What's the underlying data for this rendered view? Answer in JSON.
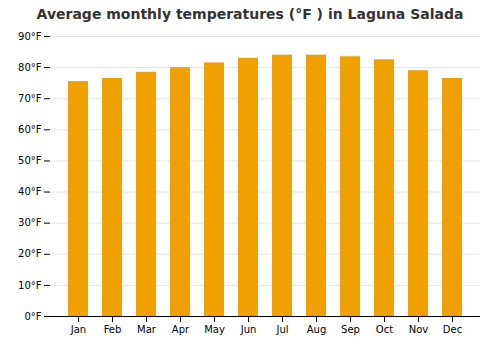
{
  "chart_data": {
    "type": "bar",
    "title": "Average monthly temperatures (°F ) in Laguna Salada",
    "categories": [
      "Jan",
      "Feb",
      "Mar",
      "Apr",
      "May",
      "Jun",
      "Jul",
      "Aug",
      "Sep",
      "Oct",
      "Nov",
      "Dec"
    ],
    "values": [
      75.5,
      76.5,
      78.5,
      80.0,
      81.5,
      83.0,
      84.0,
      84.0,
      83.5,
      82.5,
      79.0,
      76.5
    ],
    "color": "#F0A000",
    "ylim": [
      0,
      90
    ],
    "yticks": [
      {
        "value": 0,
        "label": "0°F"
      },
      {
        "value": 10,
        "label": "10°F"
      },
      {
        "value": 20,
        "label": "20°F"
      },
      {
        "value": 30,
        "label": "30°F"
      },
      {
        "value": 40,
        "label": "40°F"
      },
      {
        "value": 50,
        "label": "50°F"
      },
      {
        "value": 60,
        "label": "60°F"
      },
      {
        "value": 70,
        "label": "70°F"
      },
      {
        "value": 80,
        "label": "80°F"
      },
      {
        "value": 90,
        "label": "90°F"
      }
    ],
    "grid": true
  }
}
